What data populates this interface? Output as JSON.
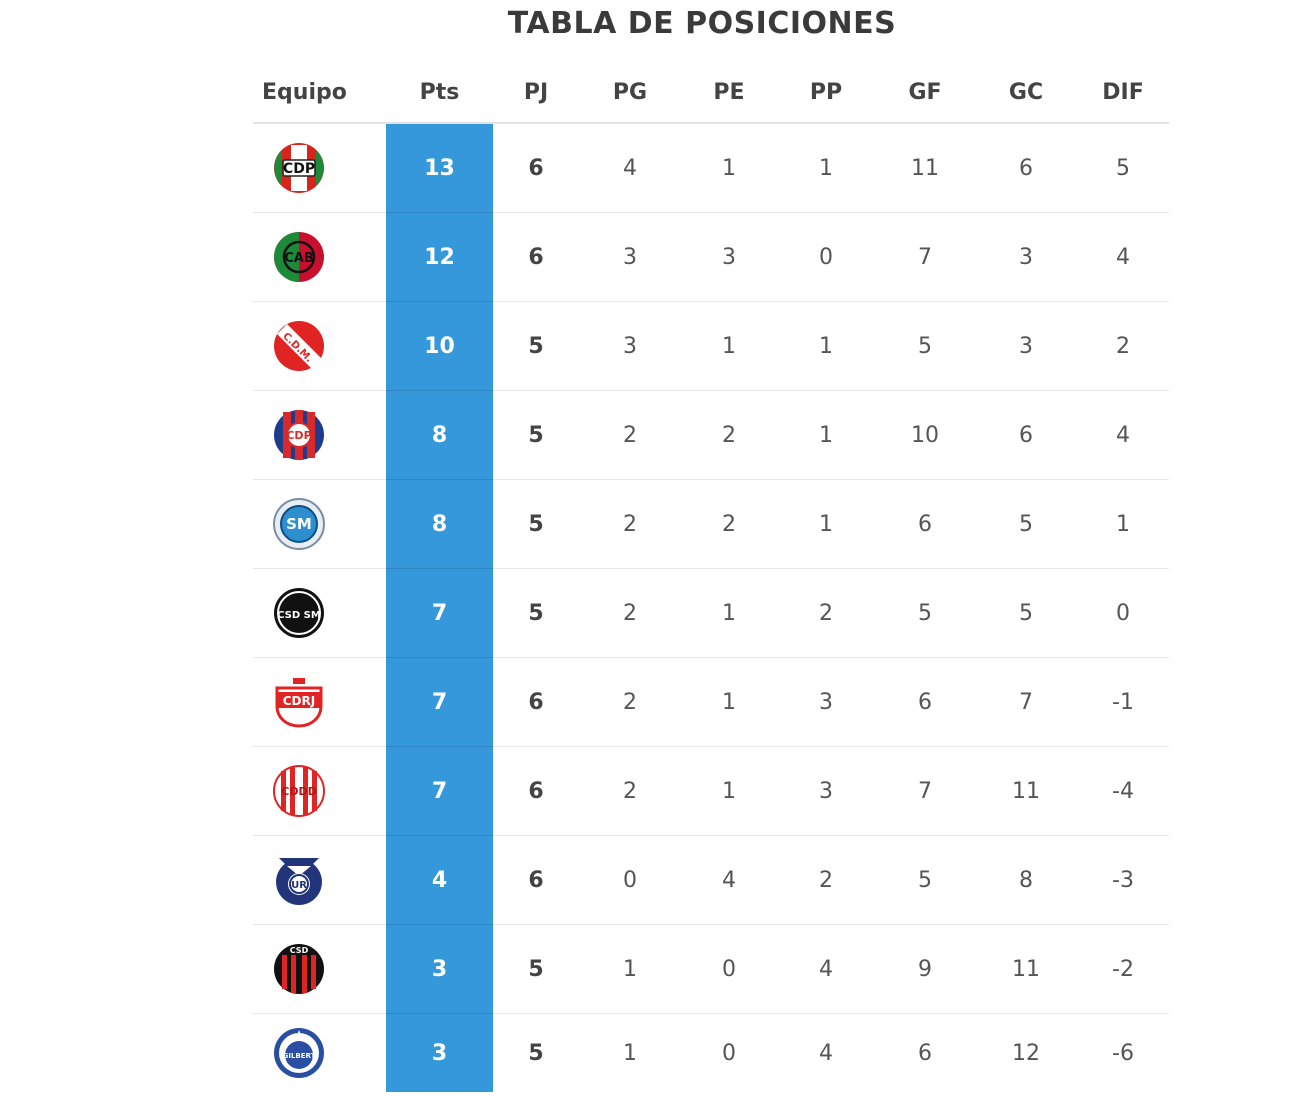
{
  "page": {
    "title": "TABLA DE POSICIONES"
  },
  "table": {
    "headers": [
      "Equipo",
      "Pts",
      "PJ",
      "PG",
      "PE",
      "PP",
      "GF",
      "GC",
      "DIF"
    ],
    "rows": [
      {
        "crest": "cdp-crest-icon",
        "crest_text": "CDP",
        "pts": "13",
        "pj": "6",
        "pg": "4",
        "pe": "1",
        "pp": "1",
        "gf": "11",
        "gc": "6",
        "dif": "5"
      },
      {
        "crest": "cab-crest-icon",
        "crest_text": "CAB",
        "pts": "12",
        "pj": "6",
        "pg": "3",
        "pe": "3",
        "pp": "0",
        "gf": "7",
        "gc": "3",
        "dif": "4"
      },
      {
        "crest": "cdm-crest-icon",
        "crest_text": "C.D.M.",
        "pts": "10",
        "pj": "5",
        "pg": "3",
        "pe": "1",
        "pp": "1",
        "gf": "5",
        "gc": "3",
        "dif": "2"
      },
      {
        "crest": "cdp2-crest-icon",
        "crest_text": "CDP",
        "pts": "8",
        "pj": "5",
        "pg": "2",
        "pe": "2",
        "pp": "1",
        "gf": "10",
        "gc": "6",
        "dif": "4"
      },
      {
        "crest": "sm-crest-icon",
        "crest_text": "SM",
        "pts": "8",
        "pj": "5",
        "pg": "2",
        "pe": "2",
        "pp": "1",
        "gf": "6",
        "gc": "5",
        "dif": "1"
      },
      {
        "crest": "csdsm-crest-icon",
        "crest_text": "CSD SM",
        "pts": "7",
        "pj": "5",
        "pg": "2",
        "pe": "1",
        "pp": "2",
        "gf": "5",
        "gc": "5",
        "dif": "0"
      },
      {
        "crest": "cdrj-crest-icon",
        "crest_text": "CDRJ",
        "pts": "7",
        "pj": "6",
        "pg": "2",
        "pe": "1",
        "pp": "3",
        "gf": "6",
        "gc": "7",
        "dif": "-1"
      },
      {
        "crest": "cddd-crest-icon",
        "crest_text": "CDDD",
        "pts": "7",
        "pj": "6",
        "pg": "2",
        "pe": "1",
        "pp": "3",
        "gf": "7",
        "gc": "11",
        "dif": "-4"
      },
      {
        "crest": "ur-crest-icon",
        "crest_text": "UR",
        "pts": "4",
        "pj": "6",
        "pg": "0",
        "pe": "4",
        "pp": "2",
        "gf": "5",
        "gc": "8",
        "dif": "-3"
      },
      {
        "crest": "csd-crest-icon",
        "crest_text": "CSD",
        "pts": "3",
        "pj": "5",
        "pg": "1",
        "pe": "0",
        "pp": "4",
        "gf": "9",
        "gc": "11",
        "dif": "-2"
      },
      {
        "crest": "gilbert-crest-icon",
        "crest_text": "GILBERT",
        "pts": "3",
        "pj": "5",
        "pg": "1",
        "pe": "0",
        "pp": "4",
        "gf": "6",
        "gc": "12",
        "dif": "-6"
      }
    ]
  },
  "colors": {
    "points_bg": "#3498db",
    "header_text": "#444444",
    "divider": "#e6e6e6"
  }
}
